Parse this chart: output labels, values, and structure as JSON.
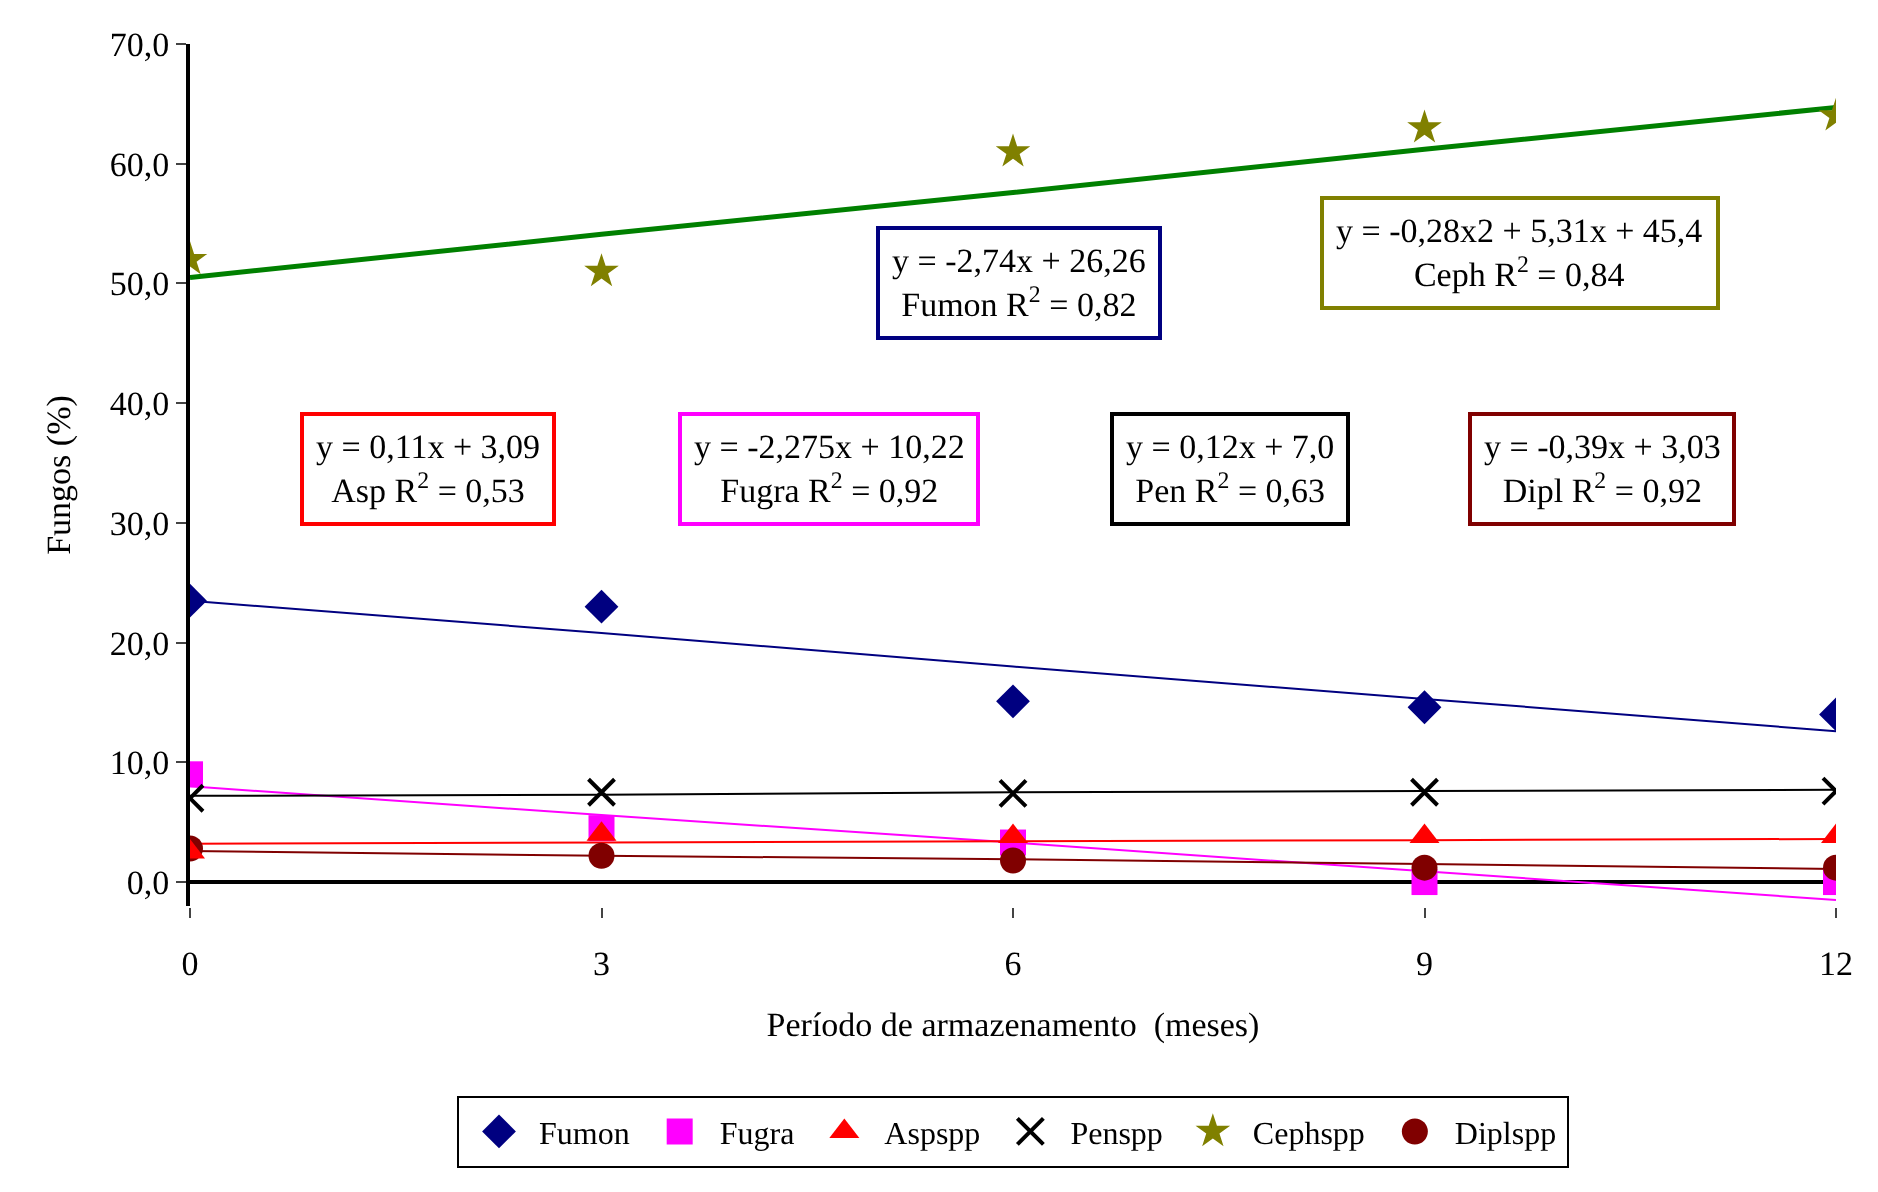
{
  "chart_data": {
    "type": "scatter",
    "xlabel": "Período de armazenamento  (meses)",
    "ylabel": "Fungos (%)",
    "x": [
      0,
      3,
      6,
      9,
      12
    ],
    "xlim": [
      0,
      12
    ],
    "xticks": [
      0,
      3,
      6,
      9,
      12
    ],
    "ylim": [
      -2,
      70
    ],
    "yticks": [
      {
        "value": 0,
        "label": "0,0"
      },
      {
        "value": 10,
        "label": "10,0"
      },
      {
        "value": 20,
        "label": "20,0"
      },
      {
        "value": 30,
        "label": "30,0"
      },
      {
        "value": 40,
        "label": "40,0"
      },
      {
        "value": 50,
        "label": "50,0"
      },
      {
        "value": 60,
        "label": "60,0"
      },
      {
        "value": 70,
        "label": "70,0"
      }
    ],
    "legend": "bottom",
    "series": [
      {
        "name": "Fumon",
        "color": "#000080",
        "marker": "diamond",
        "values": [
          23.5,
          23.0,
          15.1,
          14.6,
          14.0
        ]
      },
      {
        "name": "Fugra",
        "color": "#ff00ff",
        "marker": "square",
        "values": [
          9.0,
          4.5,
          3.3,
          0.0,
          0.0
        ]
      },
      {
        "name": "Aspspp",
        "color": "#ff0000",
        "marker": "triangle",
        "values": [
          2.5,
          4.0,
          3.8,
          3.8,
          3.8
        ]
      },
      {
        "name": "Penspp",
        "color": "#000000",
        "marker": "cross",
        "values": [
          7.0,
          7.5,
          7.4,
          7.5,
          7.6
        ]
      },
      {
        "name": "Cephspp",
        "color": "#808000",
        "marker": "star",
        "values": [
          52.0,
          51.0,
          61.0,
          63.0,
          64.0
        ]
      },
      {
        "name": "Diplspp",
        "color": "#800000",
        "marker": "circle",
        "values": [
          2.8,
          2.2,
          1.8,
          1.2,
          1.2
        ]
      },
      {
        "type": "line",
        "color": "#000080",
        "values": [
          23.5,
          20.8,
          18.0,
          15.3,
          12.6
        ]
      },
      {
        "type": "line",
        "color": "#ff00ff",
        "values": [
          8.0,
          5.6,
          3.3,
          0.9,
          -1.5
        ]
      },
      {
        "type": "line",
        "color": "#ff0000",
        "values": [
          3.2,
          3.3,
          3.4,
          3.5,
          3.6
        ]
      },
      {
        "type": "line",
        "color": "#000000",
        "values": [
          7.2,
          7.3,
          7.5,
          7.6,
          7.7
        ]
      },
      {
        "type": "line",
        "color": "#008000",
        "values": [
          50.5,
          54.1,
          57.6,
          61.2,
          64.7
        ]
      },
      {
        "type": "line",
        "color": "#800000",
        "values": [
          2.6,
          2.2,
          1.9,
          1.5,
          1.1
        ]
      }
    ],
    "annotations": [
      "y = -2,74x + 26,26\nFumon R$^{2}$ = 0,82",
      "y = -0,28x2 + 5,31x + 45,4\nCeph R$^{2}$ = 0,84",
      "y = 0,11x + 3,09\nAsp R$^{2}$ = 0,53",
      "y = -2,275x + 10,22\nFugra R$^{2}$ = 0,92",
      "y = 0,12x + 7,0\nPen R$^{2}$ = 0,63",
      "y = -0,39x + 3,03\nDipl R$^{2}$ = 0,92"
    ]
  }
}
